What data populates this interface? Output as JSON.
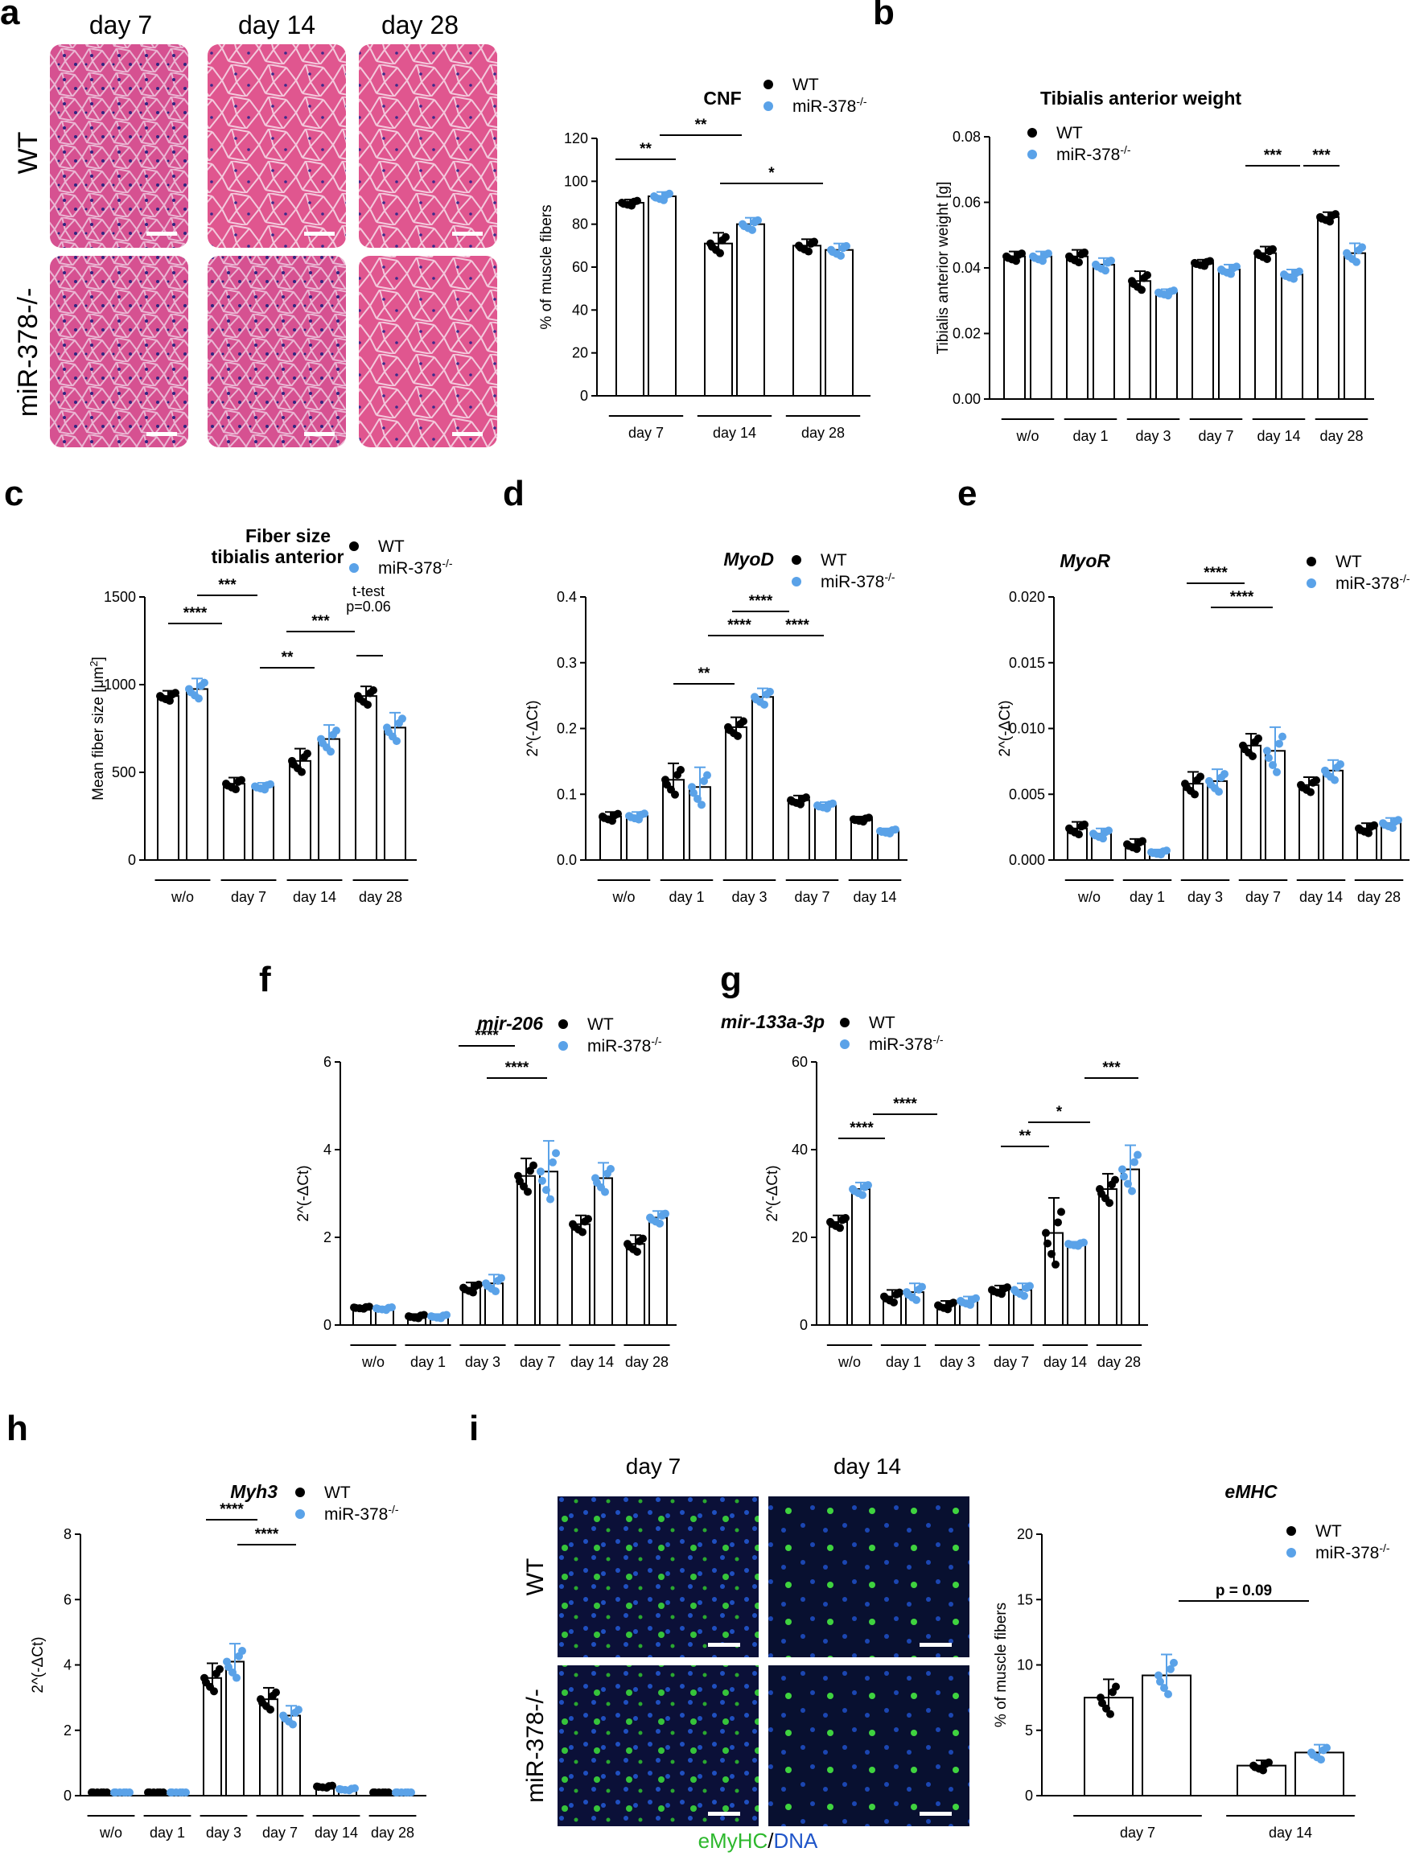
{
  "colors": {
    "wt": "#000000",
    "ko": "#5aa2e8",
    "he_bg": "#e2578f",
    "if_bg": "#0a0f3a",
    "if_green": "#3fd33f",
    "if_dna": "#1f55c9",
    "scalebar": "#ffffff"
  },
  "legend": {
    "wt": "WT",
    "ko": "miR-378",
    "ko_sup": "-/-"
  },
  "panel_a": {
    "label": "a",
    "columns": [
      "day 7",
      "day 14",
      "day 28"
    ],
    "rows": [
      "WT",
      "miR-378-/-"
    ]
  },
  "panel_i_images": {
    "label": "i",
    "columns": [
      "day 7",
      "day 14"
    ],
    "rows": [
      "WT",
      "miR-378-/-"
    ],
    "caption_green": "eMyHC",
    "caption_sep": "/",
    "caption_blue": "DNA"
  },
  "chart_data": [
    {
      "id": "cnf",
      "type": "bar",
      "title": "CNF",
      "title_italic": false,
      "ylabel": "% of muscle fibers",
      "ylim": [
        0,
        120
      ],
      "yticks": [
        "0",
        "20",
        "40",
        "60",
        "80",
        "100",
        "120"
      ],
      "groups": [
        "day 7",
        "day 14",
        "day 28"
      ],
      "wt": [
        90,
        71,
        70
      ],
      "ko": [
        93,
        80,
        68
      ],
      "wt_err": [
        1.5,
        5,
        3
      ],
      "ko_err": [
        2,
        3,
        3
      ],
      "sig": [
        {
          "text": "**"
        },
        {
          "text": "**"
        },
        {
          "text": "*"
        }
      ]
    },
    {
      "id": "ta",
      "type": "bar",
      "title": "Tibialis anterior weight",
      "title_italic": false,
      "ylabel": "Tibialis anterior weight [g]",
      "ylim": [
        0,
        0.08
      ],
      "yticks": [
        "0.00",
        "0.02",
        "0.04",
        "0.06",
        "0.08"
      ],
      "groups": [
        "w/o",
        "day 1",
        "day 3",
        "day 7",
        "day 14",
        "day 28"
      ],
      "wt": [
        0.0435,
        0.0435,
        0.036,
        0.0415,
        0.0445,
        0.0555
      ],
      "ko": [
        0.0435,
        0.041,
        0.0325,
        0.0395,
        0.038,
        0.0445
      ],
      "wt_err": [
        0.0015,
        0.002,
        0.003,
        0.001,
        0.002,
        0.0015
      ],
      "ko_err": [
        0.0015,
        0.002,
        0.001,
        0.0015,
        0.0015,
        0.003
      ],
      "sig": [
        {
          "text": "***"
        },
        {
          "text": "***"
        }
      ]
    },
    {
      "id": "fiber",
      "type": "bar",
      "title": "Fiber size",
      "title2": "tibialis anterior",
      "title_italic": false,
      "ylabel": "Mean fiber size [μm",
      "ylabel_sup": "2",
      "ylabel_end": "]",
      "ylim": [
        0,
        1500
      ],
      "yticks": [
        "0",
        "500",
        "1000",
        "1500"
      ],
      "groups": [
        "w/o",
        "day 7",
        "day 14",
        "day 28"
      ],
      "wt": [
        935,
        435,
        565,
        935
      ],
      "ko": [
        975,
        420,
        690,
        755
      ],
      "wt_err": [
        30,
        35,
        70,
        55
      ],
      "ko_err": [
        60,
        20,
        80,
        85
      ],
      "sig": [
        {
          "text": "****"
        },
        {
          "text": "***"
        },
        {
          "text": "**"
        },
        {
          "text": "***"
        }
      ],
      "note1": "t-test",
      "note2": "p=0.06"
    },
    {
      "id": "myod",
      "type": "bar",
      "title": "MyoD",
      "title_italic": true,
      "ylabel": "2^(-ΔCt)",
      "ylim": [
        0,
        0.4
      ],
      "yticks": [
        "0.0",
        "0.1",
        "0.2",
        "0.3",
        "0.4"
      ],
      "groups": [
        "w/o",
        "day 1",
        "day 3",
        "day 7",
        "day 14"
      ],
      "wt": [
        0.066,
        0.122,
        0.202,
        0.091,
        0.062
      ],
      "ko": [
        0.067,
        0.111,
        0.248,
        0.083,
        0.044
      ],
      "wt_err": [
        0.007,
        0.025,
        0.015,
        0.007,
        0.004
      ],
      "ko_err": [
        0.006,
        0.03,
        0.013,
        0.005,
        0.004
      ],
      "sig": [
        {
          "text": "**"
        },
        {
          "text": "****"
        },
        {
          "text": "****"
        },
        {
          "text": "****"
        }
      ]
    },
    {
      "id": "myor",
      "type": "bar",
      "title": "MyoR",
      "title_italic": true,
      "ylabel": "2^(-ΔCt)",
      "ylim": [
        0,
        0.02
      ],
      "yticks": [
        "0.000",
        "0.005",
        "0.010",
        "0.015",
        "0.020"
      ],
      "groups": [
        "w/o",
        "day 1",
        "day 3",
        "day 7",
        "day 14",
        "day 28"
      ],
      "wt": [
        0.0024,
        0.0012,
        0.0058,
        0.0087,
        0.0057,
        0.0024
      ],
      "ko": [
        0.002,
        0.0006,
        0.006,
        0.0083,
        0.0068,
        0.0028
      ],
      "wt_err": [
        0.0005,
        0.0004,
        0.0009,
        0.0009,
        0.0006,
        0.0004
      ],
      "ko_err": [
        0.0004,
        0.0002,
        0.0009,
        0.0018,
        0.0008,
        0.0004
      ],
      "sig": [
        {
          "text": "****"
        },
        {
          "text": "****"
        }
      ]
    },
    {
      "id": "mir206",
      "type": "bar",
      "title": "mir-206",
      "title_italic": true,
      "ylabel": "2^(-ΔCt)",
      "ylim": [
        0,
        6
      ],
      "yticks": [
        "0",
        "2",
        "4",
        "6"
      ],
      "groups": [
        "w/o",
        "day 1",
        "day 3",
        "day 7",
        "day 14",
        "day 28"
      ],
      "wt": [
        0.4,
        0.2,
        0.85,
        3.4,
        2.3,
        1.85
      ],
      "ko": [
        0.38,
        0.2,
        0.95,
        3.5,
        3.35,
        2.45
      ],
      "wt_err": [
        0.03,
        0.05,
        0.12,
        0.4,
        0.2,
        0.2
      ],
      "ko_err": [
        0.04,
        0.05,
        0.2,
        0.7,
        0.35,
        0.15
      ],
      "sig": [
        {
          "text": "****"
        },
        {
          "text": "****"
        }
      ]
    },
    {
      "id": "mir133",
      "type": "bar",
      "title": "mir-133a-3p",
      "title_italic": true,
      "ylabel": "2^(-ΔCt)",
      "ylim": [
        0,
        60
      ],
      "yticks": [
        "0",
        "20",
        "40",
        "60"
      ],
      "groups": [
        "w/o",
        "day 1",
        "day 3",
        "day 7",
        "day 14",
        "day 28"
      ],
      "wt": [
        23.5,
        6.5,
        4.5,
        8,
        21,
        31
      ],
      "ko": [
        31,
        7.5,
        5.5,
        8,
        18.5,
        35.5
      ],
      "wt_err": [
        1.5,
        1.5,
        1,
        1,
        8,
        3.5
      ],
      "ko_err": [
        1.5,
        2,
        1,
        1.5,
        0.5,
        5.5
      ],
      "sig": [
        {
          "text": "****"
        },
        {
          "text": "****"
        },
        {
          "text": "**"
        },
        {
          "text": "*"
        },
        {
          "text": "***"
        }
      ]
    },
    {
      "id": "myh3",
      "type": "bar",
      "title": "Myh3",
      "title_italic": true,
      "ylabel": "2^(-ΔCt)",
      "ylim": [
        0,
        8
      ],
      "yticks": [
        "0",
        "2",
        "4",
        "6",
        "8"
      ],
      "groups": [
        "w/o",
        "day 1",
        "day 3",
        "day 7",
        "day 14",
        "day 28"
      ],
      "wt": [
        0.03,
        0.03,
        3.6,
        2.95,
        0.28,
        0.03
      ],
      "ko": [
        0.03,
        0.03,
        4.1,
        2.45,
        0.2,
        0.03
      ],
      "wt_err": [
        0.01,
        0.01,
        0.45,
        0.35,
        0.04,
        0.01
      ],
      "ko_err": [
        0.01,
        0.01,
        0.55,
        0.3,
        0.04,
        0.01
      ],
      "sig": [
        {
          "text": "****"
        },
        {
          "text": "****"
        }
      ]
    },
    {
      "id": "emhc",
      "type": "bar",
      "title": "eMHC",
      "title_italic": true,
      "ylabel": "% of muscle fibers",
      "ylim": [
        0,
        20
      ],
      "yticks": [
        "0",
        "5",
        "10",
        "15",
        "20"
      ],
      "groups": [
        "day 7",
        "day 14"
      ],
      "wt": [
        7.5,
        2.3
      ],
      "ko": [
        9.2,
        3.3
      ],
      "wt_err": [
        1.4,
        0.4
      ],
      "ko_err": [
        1.6,
        0.6
      ],
      "sig": [
        {
          "text": "p = 0.09"
        }
      ]
    }
  ],
  "panel_labels": {
    "b": "b",
    "c": "c",
    "d": "d",
    "e": "e",
    "f": "f",
    "g": "g",
    "h": "h"
  }
}
